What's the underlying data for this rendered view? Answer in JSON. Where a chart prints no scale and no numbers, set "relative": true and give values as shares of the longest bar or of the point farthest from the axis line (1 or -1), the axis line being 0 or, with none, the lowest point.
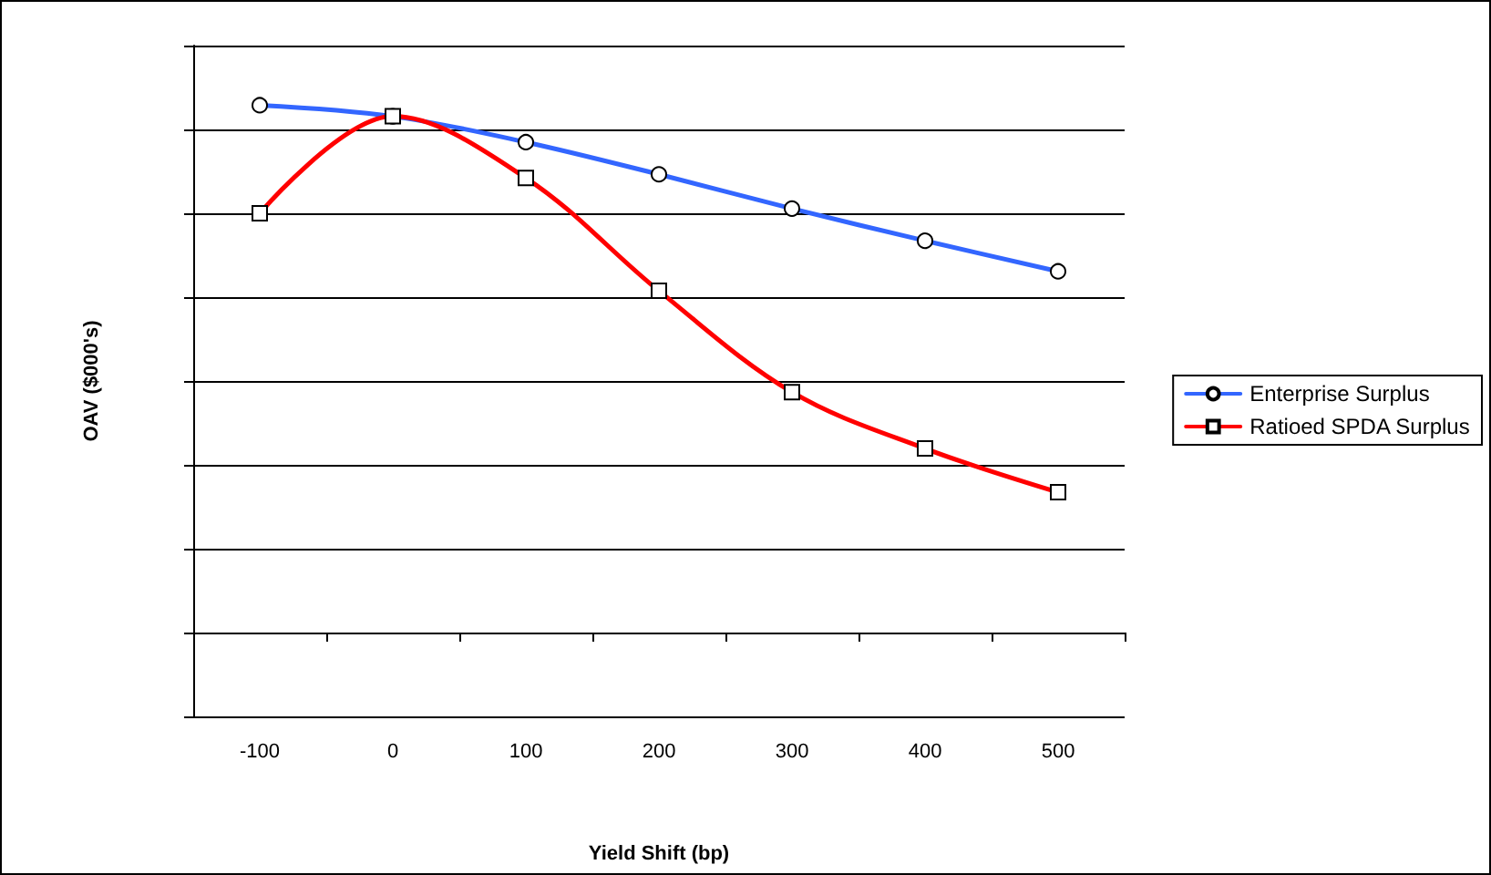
{
  "chart_data": {
    "type": "line",
    "relative": true,
    "xlabel": "Yield Shift (bp)",
    "ylabel": "OAV ($000's)",
    "categories": [
      "-100",
      "0",
      "100",
      "200",
      "300",
      "400",
      "500"
    ],
    "series": [
      {
        "name": "Enterprise Surplus",
        "color": "#3366ff",
        "marker": "circle",
        "values": [
          1,
          0.979,
          0.93,
          0.869,
          0.804,
          0.743,
          0.685
        ]
      },
      {
        "name": "Ratioed SPDA Surplus",
        "color": "#ff0000",
        "marker": "square",
        "values": [
          0.795,
          0.979,
          0.862,
          0.648,
          0.456,
          0.349,
          0.266
        ]
      }
    ],
    "grid": "y",
    "legend": "right",
    "line_style": "solid"
  }
}
